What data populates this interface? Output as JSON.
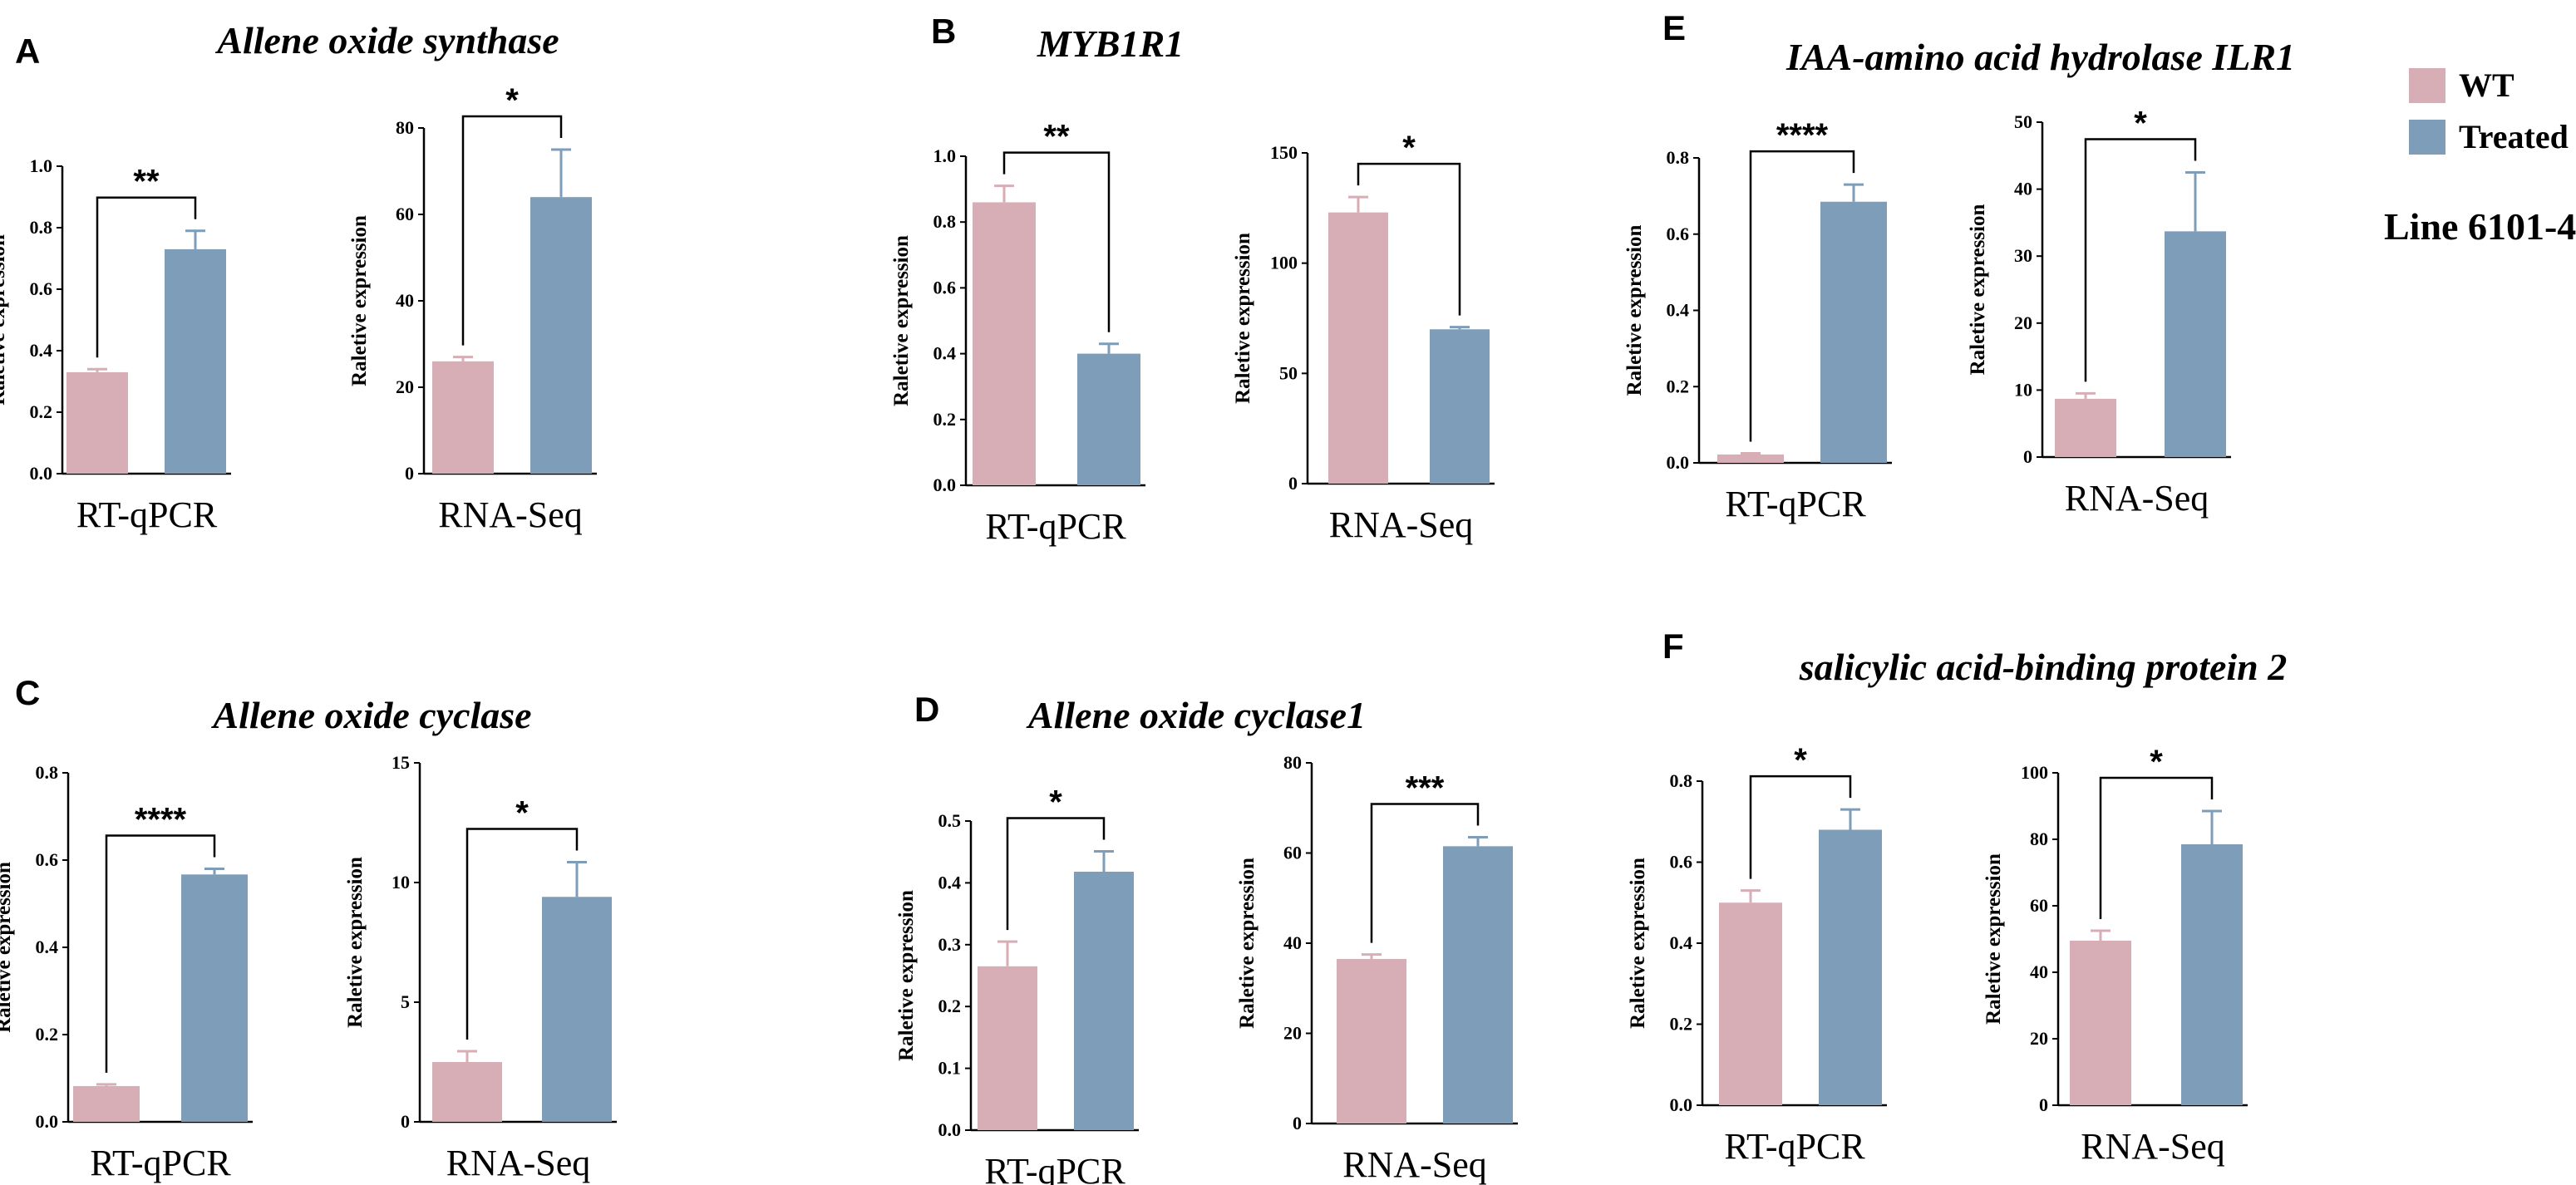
{
  "legend": {
    "items": [
      {
        "label": "WT",
        "color": "#d8aeb6"
      },
      {
        "label": "Treated",
        "color": "#7e9db8"
      }
    ],
    "line_label": "Line 6101-4"
  },
  "panels": [
    {
      "letter": "A",
      "title": "Allene oxide synthase"
    },
    {
      "letter": "B",
      "title": "MYB1R1"
    },
    {
      "letter": "C",
      "title": "Allene oxide cyclase"
    },
    {
      "letter": "D",
      "title": "Allene oxide cyclase1"
    },
    {
      "letter": "E",
      "title": "IAA-amino acid hydrolase ILR1"
    },
    {
      "letter": "F",
      "title": "salicylic acid-binding protein 2"
    }
  ],
  "chart_data": [
    {
      "type": "bar",
      "panel": "A",
      "xlabel": "RT-qPCR",
      "ylabel": "Raletive expression",
      "ylim": [
        0,
        1.0
      ],
      "yticks": [
        "0.0",
        "0.2",
        "0.4",
        "0.6",
        "0.8",
        "1.0"
      ],
      "series": [
        {
          "name": "WT",
          "value": 0.33,
          "error": 0.01
        },
        {
          "name": "Treated",
          "value": 0.73,
          "error": 0.06
        }
      ],
      "significance": "**"
    },
    {
      "type": "bar",
      "panel": "A",
      "xlabel": "RNA-Seq",
      "ylabel": "Raletive expression",
      "ylim": [
        0,
        80
      ],
      "yticks": [
        "0",
        "20",
        "40",
        "60",
        "80"
      ],
      "series": [
        {
          "name": "WT",
          "value": 26,
          "error": 1
        },
        {
          "name": "Treated",
          "value": 64,
          "error": 11
        }
      ],
      "significance": "*"
    },
    {
      "type": "bar",
      "panel": "B",
      "xlabel": "RT-qPCR",
      "ylabel": "Raletive expression",
      "ylim": [
        0,
        1.0
      ],
      "yticks": [
        "0.0",
        "0.2",
        "0.4",
        "0.6",
        "0.8",
        "1.0"
      ],
      "series": [
        {
          "name": "WT",
          "value": 0.86,
          "error": 0.05
        },
        {
          "name": "Treated",
          "value": 0.4,
          "error": 0.03
        }
      ],
      "significance": "**"
    },
    {
      "type": "bar",
      "panel": "B",
      "xlabel": "RNA-Seq",
      "ylabel": "Raletive expression",
      "ylim": [
        0,
        150
      ],
      "yticks": [
        "0",
        "50",
        "100",
        "150"
      ],
      "series": [
        {
          "name": "WT",
          "value": 123,
          "error": 7
        },
        {
          "name": "Treated",
          "value": 70,
          "error": 1
        }
      ],
      "significance": "*"
    },
    {
      "type": "bar",
      "panel": "C",
      "xlabel": "RT-qPCR",
      "ylabel": "Raletive expression",
      "ylim": [
        0,
        0.8
      ],
      "yticks": [
        "0.0",
        "0.2",
        "0.4",
        "0.6",
        "0.8"
      ],
      "series": [
        {
          "name": "WT",
          "value": 0.082,
          "error": 0.004
        },
        {
          "name": "Treated",
          "value": 0.567,
          "error": 0.013
        }
      ],
      "significance": "****"
    },
    {
      "type": "bar",
      "panel": "C",
      "xlabel": "RNA-Seq",
      "ylabel": "Raletive expression",
      "ylim": [
        0,
        15
      ],
      "yticks": [
        "0",
        "5",
        "10",
        "15"
      ],
      "series": [
        {
          "name": "WT",
          "value": 2.5,
          "error": 0.45
        },
        {
          "name": "Treated",
          "value": 9.4,
          "error": 1.45
        }
      ],
      "significance": "*"
    },
    {
      "type": "bar",
      "panel": "D",
      "xlabel": "RT-qPCR",
      "ylabel": "Raletive expression",
      "ylim": [
        0,
        0.5
      ],
      "yticks": [
        "0.0",
        "0.1",
        "0.2",
        "0.3",
        "0.4",
        "0.5"
      ],
      "series": [
        {
          "name": "WT",
          "value": 0.265,
          "error": 0.04
        },
        {
          "name": "Treated",
          "value": 0.418,
          "error": 0.033
        }
      ],
      "significance": "*"
    },
    {
      "type": "bar",
      "panel": "D",
      "xlabel": "RNA-Seq",
      "ylabel": "Raletive expression",
      "ylim": [
        0,
        80
      ],
      "yticks": [
        "0",
        "20",
        "40",
        "60",
        "80"
      ],
      "series": [
        {
          "name": "WT",
          "value": 36.5,
          "error": 1
        },
        {
          "name": "Treated",
          "value": 61.5,
          "error": 2
        }
      ],
      "significance": "***"
    },
    {
      "type": "bar",
      "panel": "E",
      "xlabel": "RT-qPCR",
      "ylabel": "Raletive expression",
      "ylim": [
        0,
        0.8
      ],
      "yticks": [
        "0.0",
        "0.2",
        "0.4",
        "0.6",
        "0.8"
      ],
      "series": [
        {
          "name": "WT",
          "value": 0.022,
          "error": 0.003
        },
        {
          "name": "Treated",
          "value": 0.685,
          "error": 0.045
        }
      ],
      "significance": "****"
    },
    {
      "type": "bar",
      "panel": "E",
      "xlabel": "RNA-Seq",
      "ylabel": "Raletive expression",
      "ylim": [
        0,
        50
      ],
      "yticks": [
        "0",
        "10",
        "20",
        "30",
        "40",
        "50"
      ],
      "series": [
        {
          "name": "WT",
          "value": 8.7,
          "error": 0.8
        },
        {
          "name": "Treated",
          "value": 33.7,
          "error": 8.8
        }
      ],
      "significance": "*"
    },
    {
      "type": "bar",
      "panel": "F",
      "xlabel": "RT-qPCR",
      "ylabel": "Raletive expression",
      "ylim": [
        0,
        0.8
      ],
      "yticks": [
        "0.0",
        "0.2",
        "0.4",
        "0.6",
        "0.8"
      ],
      "series": [
        {
          "name": "WT",
          "value": 0.5,
          "error": 0.03
        },
        {
          "name": "Treated",
          "value": 0.68,
          "error": 0.05
        }
      ],
      "significance": "*"
    },
    {
      "type": "bar",
      "panel": "F",
      "xlabel": "RNA-Seq",
      "ylabel": "Raletive expression",
      "ylim": [
        0,
        100
      ],
      "yticks": [
        "0",
        "20",
        "40",
        "60",
        "80",
        "100"
      ],
      "series": [
        {
          "name": "WT",
          "value": 49.5,
          "error": 3
        },
        {
          "name": "Treated",
          "value": 78.5,
          "error": 10
        }
      ],
      "significance": "*"
    }
  ]
}
